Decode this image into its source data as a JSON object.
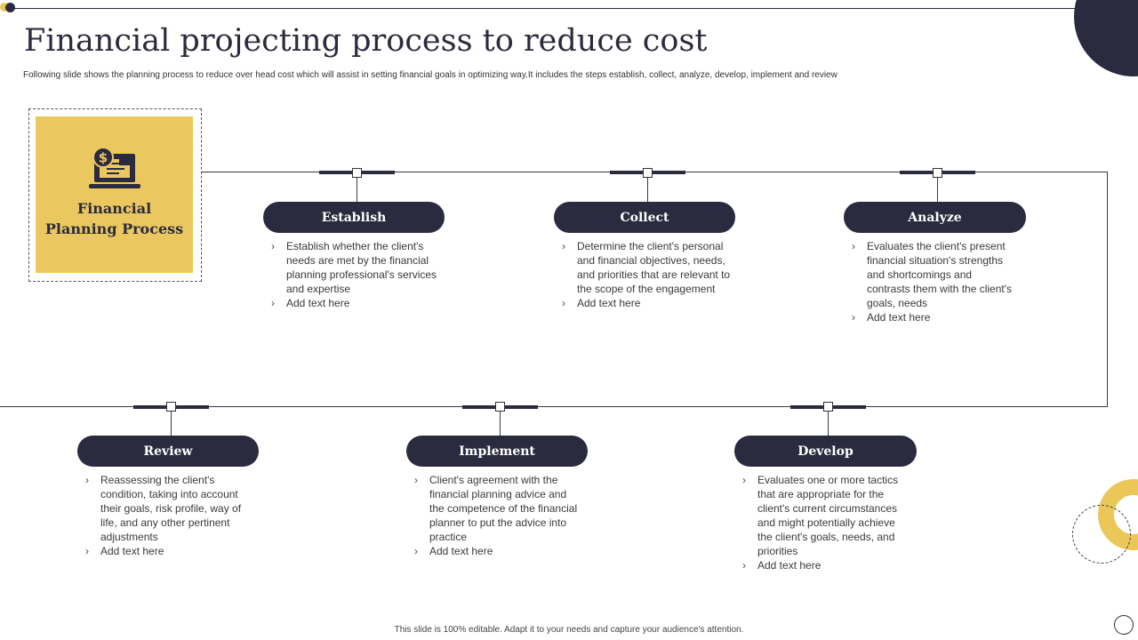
{
  "title": "Financial projecting process to reduce cost",
  "subtitle": "Following slide shows the planning process to reduce over head cost which will assist in setting financial goals in  optimizing  way.It includes the steps establish, collect, analyze, develop, implement  and review",
  "center": {
    "line1": "Financial",
    "line2": "Planning Process",
    "icon": "laptop-dollar-icon"
  },
  "steps": [
    {
      "label": "Establish",
      "points": [
        "Establish whether the client's needs are met by the financial planning professional's services and expertise",
        "Add text here"
      ]
    },
    {
      "label": "Collect",
      "points": [
        "Determine the client's personal and financial objectives, needs, and priorities that are relevant to the scope of the engagement",
        "Add text here"
      ]
    },
    {
      "label": "Analyze",
      "points": [
        "Evaluates the client's present financial situation's strengths and shortcomings and contrasts them with the client's goals, needs",
        "Add text here"
      ]
    },
    {
      "label": "Review",
      "points": [
        "Reassessing the client's condition, taking into account their goals, risk profile, way of life, and any other pertinent adjustments",
        "Add text here"
      ]
    },
    {
      "label": "Implement",
      "points": [
        "Client's agreement with the financial planning advice and the competence of the financial planner to put the advice into practice",
        "Add text here"
      ]
    },
    {
      "label": "Develop",
      "points": [
        "Evaluates one or more tactics that are appropriate for the client's current circumstances and might potentially achieve the client's goals, needs, and priorities",
        "Add text here"
      ]
    }
  ],
  "footer": "This slide is 100% editable.  Adapt it to your needs and capture your audience's attention.",
  "colors": {
    "dark": "#2b2b40",
    "accent": "#ebc75a"
  }
}
